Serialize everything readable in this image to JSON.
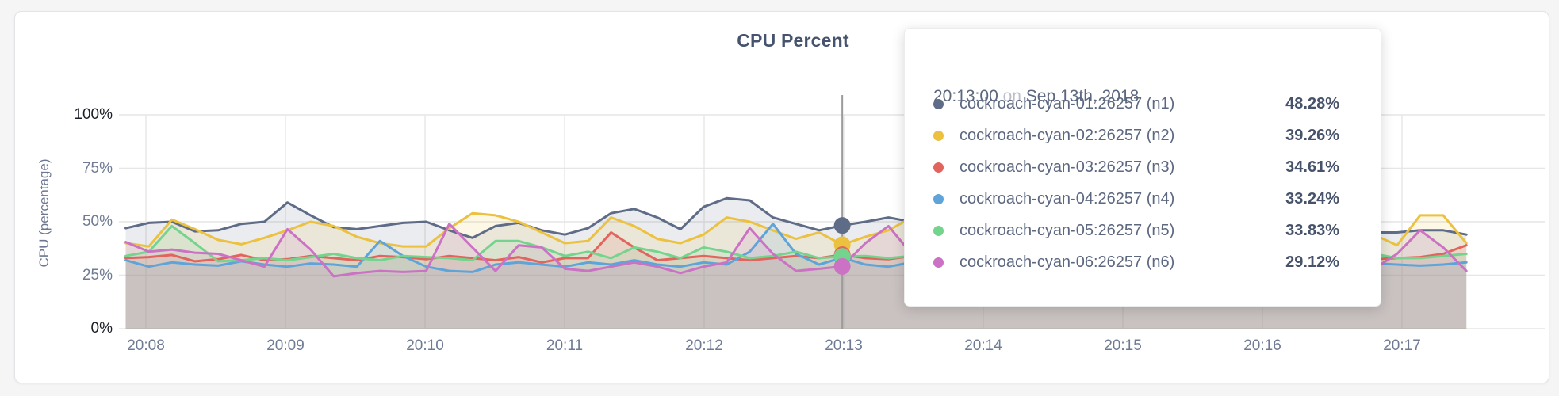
{
  "chart_data": {
    "type": "line",
    "title": "CPU Percent",
    "ylabel": "CPU (percentage)",
    "ylim": [
      0,
      100
    ],
    "grid": true,
    "y_ticks": [
      {
        "value": 100,
        "label": "100%"
      },
      {
        "value": 75,
        "label": "75%"
      },
      {
        "value": 50,
        "label": "50%"
      },
      {
        "value": 25,
        "label": "25%"
      },
      {
        "value": 0,
        "label": "0%"
      }
    ],
    "x_ticks": [
      "20:08",
      "20:09",
      "20:10",
      "20:11",
      "20:12",
      "20:13",
      "20:14",
      "20:15",
      "20:16",
      "20:17"
    ],
    "start_time": "20:07:50",
    "sample_interval_seconds": 10,
    "hover_index": 31,
    "series": [
      {
        "name": "cockroach-cyan-01:26257 (n1)",
        "color": "#5f6c87",
        "values": [
          47,
          49.5,
          50,
          45.5,
          46,
          49,
          50,
          59,
          53,
          47.5,
          46.5,
          48,
          49.5,
          50,
          46,
          42.5,
          48,
          49.5,
          46,
          44,
          47,
          54,
          56,
          52,
          46.5,
          57,
          61,
          60,
          52,
          49,
          46,
          48.28,
          50,
          52,
          50,
          48,
          49,
          50,
          48,
          49,
          50,
          48,
          49,
          50,
          49,
          48,
          50,
          49,
          48,
          50,
          49,
          48,
          48,
          46,
          45,
          45,
          46,
          46,
          44
        ]
      },
      {
        "name": "cockroach-cyan-02:26257 (n2)",
        "color": "#ecc13f",
        "values": [
          40,
          38.5,
          51,
          46.5,
          41.5,
          39.5,
          42.5,
          46,
          50,
          48,
          43,
          40,
          38.5,
          38.5,
          47,
          54,
          53,
          50,
          45,
          40,
          41,
          52,
          48,
          42,
          40,
          44,
          52,
          50,
          46,
          42,
          45,
          39.26,
          43,
          46,
          52,
          49,
          46,
          44,
          47,
          50,
          46,
          43,
          46,
          49,
          45,
          42,
          46,
          50,
          47,
          44,
          47,
          45,
          42,
          49,
          44,
          39,
          53,
          53,
          40
        ]
      },
      {
        "name": "cockroach-cyan-03:26257 (n3)",
        "color": "#e2645c",
        "values": [
          33,
          33.5,
          34.5,
          31.5,
          32.5,
          34.5,
          32,
          32.5,
          34,
          33,
          32,
          34,
          33.5,
          32.5,
          34,
          33,
          32,
          33.5,
          31,
          33,
          33,
          45,
          38,
          32,
          33,
          34,
          33,
          32,
          33,
          34,
          33,
          34.61,
          33,
          32.5,
          34,
          33,
          32,
          34,
          33,
          32,
          33,
          34,
          32,
          33,
          34,
          33,
          32,
          33,
          34,
          33,
          32,
          33,
          34,
          33,
          32.5,
          33,
          33.5,
          35,
          39
        ]
      },
      {
        "name": "cockroach-cyan-04:26257 (n4)",
        "color": "#5ea4d8",
        "values": [
          32,
          29,
          31,
          30,
          29.5,
          31.5,
          30,
          29,
          30.5,
          30,
          29,
          41,
          34,
          29,
          27,
          26.5,
          30,
          31,
          30,
          29,
          31,
          30,
          32,
          30,
          29,
          31,
          30,
          36,
          49,
          35,
          30,
          33.24,
          30,
          29,
          31,
          30,
          29,
          31,
          30,
          29,
          31,
          30,
          29,
          31,
          30,
          29,
          31,
          30,
          29,
          31,
          30,
          29,
          31,
          31,
          30.5,
          30,
          29.5,
          30,
          31
        ]
      },
      {
        "name": "cockroach-cyan-05:26257 (n5)",
        "color": "#74d48e",
        "values": [
          34,
          36,
          48,
          40,
          31.5,
          32,
          33,
          32,
          33.5,
          35,
          33,
          32,
          34,
          33.5,
          33,
          32,
          41,
          41,
          38,
          34,
          36,
          33,
          38,
          36,
          33,
          38,
          36,
          33,
          34,
          36,
          33,
          33.83,
          34,
          33,
          34,
          35,
          34,
          33,
          35,
          34,
          33,
          35,
          34,
          33,
          35,
          34,
          33,
          35,
          34,
          33,
          35,
          34,
          36,
          38,
          35,
          33,
          33,
          34,
          35
        ]
      },
      {
        "name": "cockroach-cyan-06:26257 (n6)",
        "color": "#cb72c4",
        "values": [
          40.5,
          36,
          37,
          35.5,
          35,
          32,
          29,
          46.5,
          37,
          24.5,
          26,
          27,
          26.5,
          27,
          49,
          38,
          27,
          39,
          38,
          28,
          27,
          29,
          31,
          29,
          26,
          29,
          31,
          47,
          35,
          27,
          28,
          29.12,
          40,
          48,
          35,
          30,
          28,
          31,
          29,
          30,
          28,
          31,
          29,
          30,
          28,
          31,
          29,
          30,
          28,
          31,
          29,
          30,
          28,
          28,
          28,
          35,
          46,
          38,
          27
        ]
      }
    ]
  },
  "tooltip": {
    "time": "20:13:00",
    "on_word": "on",
    "date": "Sep 13th, 2018",
    "rows": [
      {
        "name": "cockroach-cyan-01:26257 (n1)",
        "value": "48.28%",
        "color": "#5f6c87"
      },
      {
        "name": "cockroach-cyan-02:26257 (n2)",
        "value": "39.26%",
        "color": "#ecc13f"
      },
      {
        "name": "cockroach-cyan-03:26257 (n3)",
        "value": "34.61%",
        "color": "#e2645c"
      },
      {
        "name": "cockroach-cyan-04:26257 (n4)",
        "value": "33.24%",
        "color": "#5ea4d8"
      },
      {
        "name": "cockroach-cyan-05:26257 (n5)",
        "value": "33.83%",
        "color": "#74d48e"
      },
      {
        "name": "cockroach-cyan-06:26257 (n6)",
        "value": "29.12%",
        "color": "#cb72c4"
      }
    ]
  },
  "colors": {
    "grid": "#e6e6e4",
    "hover_line": "#9b9b9b",
    "title_text": "#46536e",
    "tick_text": "#6e7b93",
    "tick_text_dark": "#1c1f26"
  }
}
